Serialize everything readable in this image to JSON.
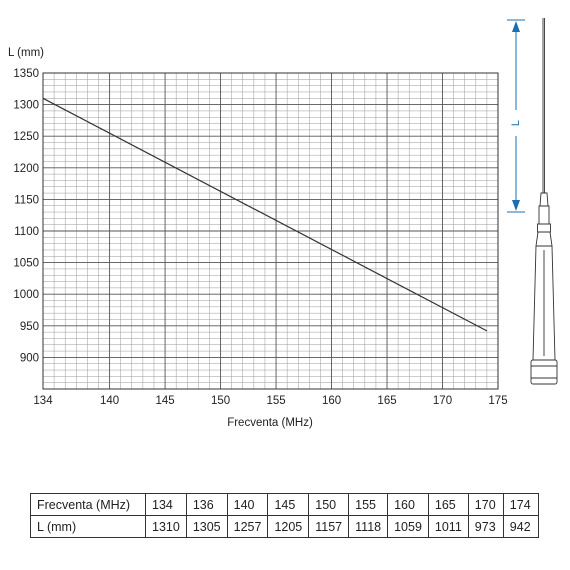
{
  "chart_data": {
    "type": "line",
    "title": "",
    "xlabel": "Frecventa (MHz)",
    "ylabel": "L (mm)",
    "xlim": [
      134,
      175
    ],
    "ylim": [
      850,
      1350
    ],
    "xticks": [
      134,
      140,
      145,
      150,
      155,
      160,
      165,
      170,
      175
    ],
    "yticks": [
      900,
      950,
      1000,
      1050,
      1100,
      1150,
      1200,
      1250,
      1300,
      1350
    ],
    "grid": true,
    "series": [
      {
        "color": "#333333",
        "points": [
          [
            134,
            1310
          ],
          [
            174,
            942
          ]
        ]
      }
    ]
  },
  "antenna": {
    "dimension_label": "L",
    "arrow_color": "#1a6fb0"
  },
  "table": {
    "header_label": "Frecventa (MHz)",
    "value_label": "L (mm)",
    "frequencies": [
      "134",
      "136",
      "140",
      "145",
      "150",
      "155",
      "160",
      "165",
      "170",
      "174"
    ],
    "lengths": [
      "1310",
      "1305",
      "1257",
      "1205",
      "1157",
      "1118",
      "1059",
      "1011",
      "973",
      "942"
    ]
  }
}
